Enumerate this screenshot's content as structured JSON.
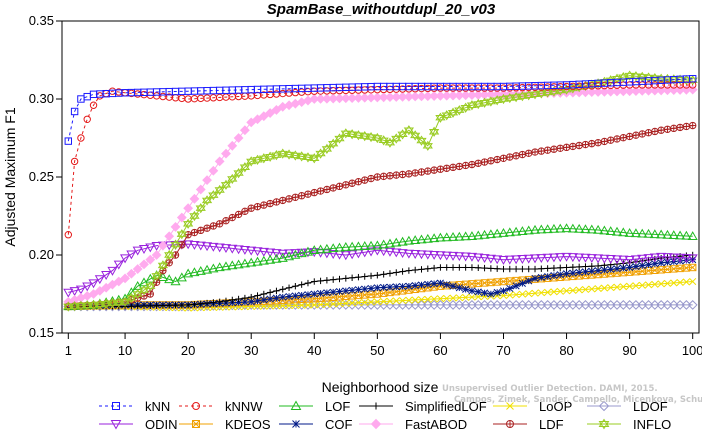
{
  "chart_data": {
    "type": "line",
    "title": "SpamBase_withoutdupl_20_v03",
    "xlabel": "Neighborhood size",
    "ylabel": "Adjusted Maximum F1",
    "xlim": [
      0,
      101
    ],
    "ylim": [
      0.15,
      0.35
    ],
    "x_ticks": [
      1,
      10,
      20,
      30,
      40,
      50,
      60,
      70,
      80,
      90,
      100
    ],
    "y_ticks": [
      0.15,
      0.2,
      0.25,
      0.3,
      0.35
    ],
    "grid": false,
    "legend_position": "bottom",
    "series": [
      {
        "name": "kNN",
        "color": "#1a1aff",
        "marker": "square",
        "dashed": true,
        "points": [
          [
            1,
            0.273
          ],
          [
            2,
            0.292
          ],
          [
            3,
            0.3
          ],
          [
            5,
            0.303
          ],
          [
            10,
            0.304
          ],
          [
            20,
            0.305
          ],
          [
            30,
            0.306
          ],
          [
            40,
            0.307
          ],
          [
            50,
            0.308
          ],
          [
            60,
            0.308
          ],
          [
            70,
            0.308
          ],
          [
            80,
            0.309
          ],
          [
            90,
            0.311
          ],
          [
            100,
            0.313
          ]
        ]
      },
      {
        "name": "kNNW",
        "color": "#e41a1a",
        "marker": "circle",
        "dashed": true,
        "points": [
          [
            1,
            0.213
          ],
          [
            2,
            0.26
          ],
          [
            3,
            0.275
          ],
          [
            4,
            0.287
          ],
          [
            5,
            0.296
          ],
          [
            6,
            0.302
          ],
          [
            8,
            0.305
          ],
          [
            10,
            0.304
          ],
          [
            15,
            0.302
          ],
          [
            20,
            0.3
          ],
          [
            30,
            0.302
          ],
          [
            40,
            0.305
          ],
          [
            50,
            0.306
          ],
          [
            60,
            0.307
          ],
          [
            70,
            0.307
          ],
          [
            80,
            0.308
          ],
          [
            90,
            0.309
          ],
          [
            100,
            0.309
          ]
        ]
      },
      {
        "name": "LOF",
        "color": "#22bb22",
        "marker": "triangle-up",
        "points": [
          [
            1,
            0.167
          ],
          [
            5,
            0.168
          ],
          [
            10,
            0.172
          ],
          [
            12,
            0.18
          ],
          [
            15,
            0.187
          ],
          [
            18,
            0.183
          ],
          [
            20,
            0.188
          ],
          [
            25,
            0.192
          ],
          [
            30,
            0.195
          ],
          [
            35,
            0.198
          ],
          [
            40,
            0.203
          ],
          [
            45,
            0.205
          ],
          [
            50,
            0.206
          ],
          [
            55,
            0.209
          ],
          [
            60,
            0.211
          ],
          [
            65,
            0.212
          ],
          [
            70,
            0.214
          ],
          [
            75,
            0.216
          ],
          [
            80,
            0.217
          ],
          [
            85,
            0.216
          ],
          [
            90,
            0.214
          ],
          [
            95,
            0.213
          ],
          [
            100,
            0.212
          ]
        ]
      },
      {
        "name": "SimplifiedLOF",
        "color": "#000000",
        "marker": "plus",
        "points": [
          [
            1,
            0.167
          ],
          [
            10,
            0.167
          ],
          [
            20,
            0.168
          ],
          [
            25,
            0.17
          ],
          [
            30,
            0.173
          ],
          [
            35,
            0.178
          ],
          [
            40,
            0.183
          ],
          [
            45,
            0.185
          ],
          [
            50,
            0.187
          ],
          [
            55,
            0.19
          ],
          [
            60,
            0.192
          ],
          [
            65,
            0.192
          ],
          [
            70,
            0.191
          ],
          [
            75,
            0.191
          ],
          [
            80,
            0.192
          ],
          [
            85,
            0.193
          ],
          [
            90,
            0.195
          ],
          [
            95,
            0.198
          ],
          [
            100,
            0.2
          ]
        ]
      },
      {
        "name": "LoOP",
        "color": "#f0e000",
        "marker": "x",
        "points": [
          [
            1,
            0.167
          ],
          [
            10,
            0.167
          ],
          [
            20,
            0.166
          ],
          [
            30,
            0.167
          ],
          [
            40,
            0.168
          ],
          [
            50,
            0.17
          ],
          [
            60,
            0.172
          ],
          [
            70,
            0.174
          ],
          [
            80,
            0.177
          ],
          [
            90,
            0.18
          ],
          [
            100,
            0.183
          ]
        ]
      },
      {
        "name": "LDOF",
        "color": "#9999cc",
        "marker": "diamond",
        "points": [
          [
            1,
            0.167
          ],
          [
            10,
            0.167
          ],
          [
            20,
            0.167
          ],
          [
            30,
            0.168
          ],
          [
            40,
            0.168
          ],
          [
            50,
            0.168
          ],
          [
            60,
            0.168
          ],
          [
            70,
            0.168
          ],
          [
            80,
            0.168
          ],
          [
            90,
            0.168
          ],
          [
            100,
            0.168
          ]
        ]
      },
      {
        "name": "ODIN",
        "color": "#9922dd",
        "marker": "triangle-down",
        "points": [
          [
            1,
            0.176
          ],
          [
            3,
            0.178
          ],
          [
            5,
            0.182
          ],
          [
            8,
            0.19
          ],
          [
            10,
            0.198
          ],
          [
            12,
            0.203
          ],
          [
            15,
            0.206
          ],
          [
            20,
            0.207
          ],
          [
            25,
            0.205
          ],
          [
            30,
            0.203
          ],
          [
            35,
            0.201
          ],
          [
            40,
            0.202
          ],
          [
            45,
            0.2
          ],
          [
            50,
            0.203
          ],
          [
            55,
            0.201
          ],
          [
            60,
            0.2
          ],
          [
            65,
            0.199
          ],
          [
            70,
            0.197
          ],
          [
            75,
            0.198
          ],
          [
            80,
            0.199
          ],
          [
            85,
            0.198
          ],
          [
            90,
            0.197
          ],
          [
            95,
            0.199
          ],
          [
            100,
            0.198
          ]
        ]
      },
      {
        "name": "KDEOS",
        "color": "#f0a000",
        "marker": "cross-square",
        "points": [
          [
            1,
            0.167
          ],
          [
            10,
            0.168
          ],
          [
            20,
            0.168
          ],
          [
            30,
            0.17
          ],
          [
            40,
            0.172
          ],
          [
            50,
            0.175
          ],
          [
            60,
            0.18
          ],
          [
            70,
            0.183
          ],
          [
            80,
            0.186
          ],
          [
            90,
            0.189
          ],
          [
            100,
            0.192
          ]
        ]
      },
      {
        "name": "COF",
        "color": "#001a88",
        "marker": "asterisk",
        "points": [
          [
            1,
            0.167
          ],
          [
            10,
            0.168
          ],
          [
            20,
            0.168
          ],
          [
            30,
            0.17
          ],
          [
            35,
            0.173
          ],
          [
            40,
            0.175
          ],
          [
            45,
            0.177
          ],
          [
            50,
            0.179
          ],
          [
            55,
            0.18
          ],
          [
            60,
            0.182
          ],
          [
            65,
            0.177
          ],
          [
            68,
            0.175
          ],
          [
            70,
            0.177
          ],
          [
            75,
            0.185
          ],
          [
            80,
            0.188
          ],
          [
            85,
            0.19
          ],
          [
            90,
            0.192
          ],
          [
            95,
            0.195
          ],
          [
            100,
            0.197
          ]
        ]
      },
      {
        "name": "FastABOD",
        "color": "#ffaaee",
        "marker": "diamond-filled",
        "points": [
          [
            1,
            0.17
          ],
          [
            5,
            0.175
          ],
          [
            10,
            0.185
          ],
          [
            15,
            0.2
          ],
          [
            20,
            0.23
          ],
          [
            25,
            0.26
          ],
          [
            30,
            0.285
          ],
          [
            35,
            0.295
          ],
          [
            40,
            0.3
          ],
          [
            50,
            0.301
          ],
          [
            60,
            0.302
          ],
          [
            70,
            0.303
          ],
          [
            80,
            0.304
          ],
          [
            90,
            0.305
          ],
          [
            100,
            0.306
          ]
        ]
      },
      {
        "name": "LDF",
        "color": "#aa2222",
        "marker": "circle-plus",
        "points": [
          [
            1,
            0.167
          ],
          [
            5,
            0.168
          ],
          [
            10,
            0.17
          ],
          [
            14,
            0.175
          ],
          [
            16,
            0.19
          ],
          [
            18,
            0.2
          ],
          [
            20,
            0.213
          ],
          [
            25,
            0.22
          ],
          [
            30,
            0.23
          ],
          [
            35,
            0.235
          ],
          [
            40,
            0.24
          ],
          [
            45,
            0.245
          ],
          [
            50,
            0.25
          ],
          [
            55,
            0.252
          ],
          [
            60,
            0.255
          ],
          [
            65,
            0.258
          ],
          [
            70,
            0.262
          ],
          [
            75,
            0.266
          ],
          [
            80,
            0.269
          ],
          [
            85,
            0.272
          ],
          [
            90,
            0.276
          ],
          [
            95,
            0.28
          ],
          [
            100,
            0.283
          ]
        ]
      },
      {
        "name": "INFLO",
        "color": "#99cc22",
        "marker": "star",
        "points": [
          [
            1,
            0.167
          ],
          [
            5,
            0.168
          ],
          [
            10,
            0.17
          ],
          [
            14,
            0.18
          ],
          [
            17,
            0.2
          ],
          [
            20,
            0.22
          ],
          [
            23,
            0.235
          ],
          [
            26,
            0.245
          ],
          [
            30,
            0.26
          ],
          [
            35,
            0.265
          ],
          [
            40,
            0.262
          ],
          [
            42,
            0.268
          ],
          [
            45,
            0.278
          ],
          [
            50,
            0.275
          ],
          [
            52,
            0.272
          ],
          [
            55,
            0.28
          ],
          [
            58,
            0.27
          ],
          [
            60,
            0.288
          ],
          [
            65,
            0.296
          ],
          [
            70,
            0.3
          ],
          [
            75,
            0.303
          ],
          [
            80,
            0.306
          ],
          [
            85,
            0.31
          ],
          [
            90,
            0.315
          ],
          [
            95,
            0.313
          ],
          [
            100,
            0.312
          ]
        ]
      }
    ]
  },
  "watermark": {
    "line1": "Unsupervised Outlier Detection. DAMI, 2015.",
    "line2": "Campos, Zimek, Sander, Campello, Micenkova, Schubert, Assent, Houle"
  }
}
